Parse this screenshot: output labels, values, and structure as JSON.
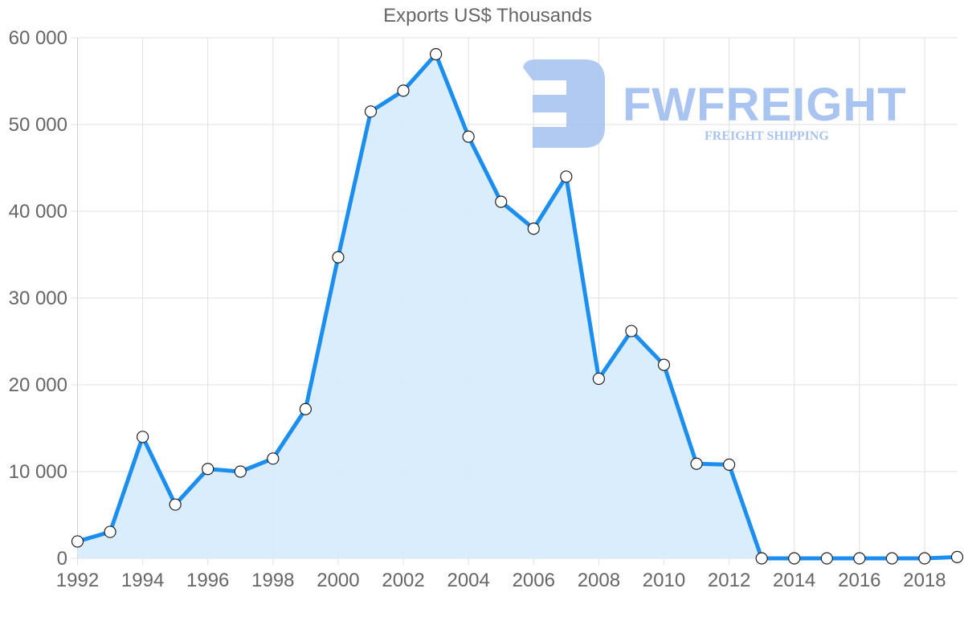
{
  "chart_data": {
    "type": "area",
    "title": "Exports US$ Thousands",
    "xlabel": "",
    "ylabel": "",
    "x": [
      1992,
      1993,
      1994,
      1995,
      1996,
      1997,
      1998,
      1999,
      2000,
      2001,
      2002,
      2003,
      2004,
      2005,
      2006,
      2007,
      2008,
      2009,
      2010,
      2011,
      2012,
      2013,
      2014,
      2015,
      2016,
      2017,
      2018,
      2019
    ],
    "series": [
      {
        "name": "Exports US$ Thousands",
        "values": [
          1950,
          3050,
          14000,
          6200,
          10300,
          10000,
          11500,
          17200,
          34700,
          51500,
          53900,
          58100,
          48600,
          41100,
          38000,
          44000,
          20700,
          26200,
          22300,
          10900,
          10800,
          0,
          0,
          0,
          0,
          0,
          0,
          150
        ]
      }
    ],
    "xticks": [
      "1992",
      "1994",
      "1996",
      "1998",
      "2000",
      "2002",
      "2004",
      "2006",
      "2008",
      "2010",
      "2012",
      "2014",
      "2016",
      "2018"
    ],
    "yticks": [
      "0",
      "10 000",
      "20 000",
      "30 000",
      "40 000",
      "50 000",
      "60 000"
    ],
    "ylim": [
      0,
      60000
    ],
    "xlim": [
      1992,
      2019
    ],
    "grid": true,
    "legend": "none",
    "colors": {
      "line": "#1b8eef",
      "fill": "#d8ecfc",
      "grid": "#e0e0e0",
      "marker_fill": "#ffffff",
      "marker_stroke": "#222222",
      "text": "#666666"
    }
  },
  "watermark": {
    "brand": "FWFREIGHT",
    "tagline": "FREIGHT SHIPPING",
    "color": "#a9c4f0"
  }
}
